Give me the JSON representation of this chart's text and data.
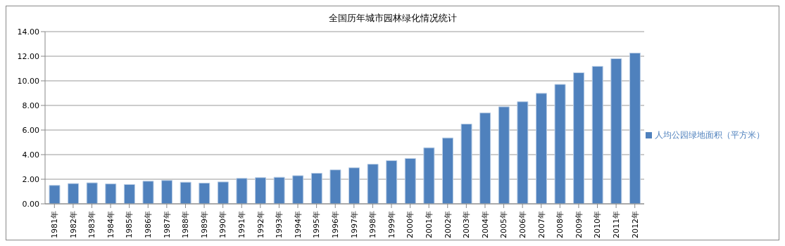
{
  "chart_data": {
    "type": "bar",
    "title": "全国历年城市园林绿化情况统计",
    "categories": [
      "1981年",
      "1982年",
      "1983年",
      "1984年",
      "1985年",
      "1986年",
      "1987年",
      "1988年",
      "1989年",
      "1990年",
      "1991年",
      "1992年",
      "1993年",
      "1994年",
      "1995年",
      "1996年",
      "1997年",
      "1998年",
      "1999年",
      "2000年",
      "2001年",
      "2002年",
      "2003年",
      "2004年",
      "2005年",
      "2006年",
      "2007年",
      "2008年",
      "2009年",
      "2010年",
      "2011年",
      "2012年"
    ],
    "series": [
      {
        "name": "人均公园绿地面积（平方米）",
        "color": "#4f81bd",
        "values": [
          1.5,
          1.65,
          1.71,
          1.62,
          1.57,
          1.84,
          1.9,
          1.76,
          1.69,
          1.78,
          2.07,
          2.13,
          2.16,
          2.29,
          2.49,
          2.76,
          2.93,
          3.22,
          3.51,
          3.69,
          4.56,
          5.36,
          6.49,
          7.39,
          7.89,
          8.3,
          8.98,
          9.71,
          10.66,
          11.18,
          11.8,
          12.26
        ]
      }
    ],
    "ylim": [
      0,
      14
    ],
    "yticks": [
      {
        "value": 0,
        "label": "0.00"
      },
      {
        "value": 2,
        "label": "2.00"
      },
      {
        "value": 4,
        "label": "4.00"
      },
      {
        "value": 6,
        "label": "6.00"
      },
      {
        "value": 8,
        "label": "8.00"
      },
      {
        "value": 10,
        "label": "10.00"
      },
      {
        "value": 12,
        "label": "12.00"
      },
      {
        "value": 14,
        "label": "14.00"
      }
    ],
    "grid": "y",
    "legend": "right"
  }
}
